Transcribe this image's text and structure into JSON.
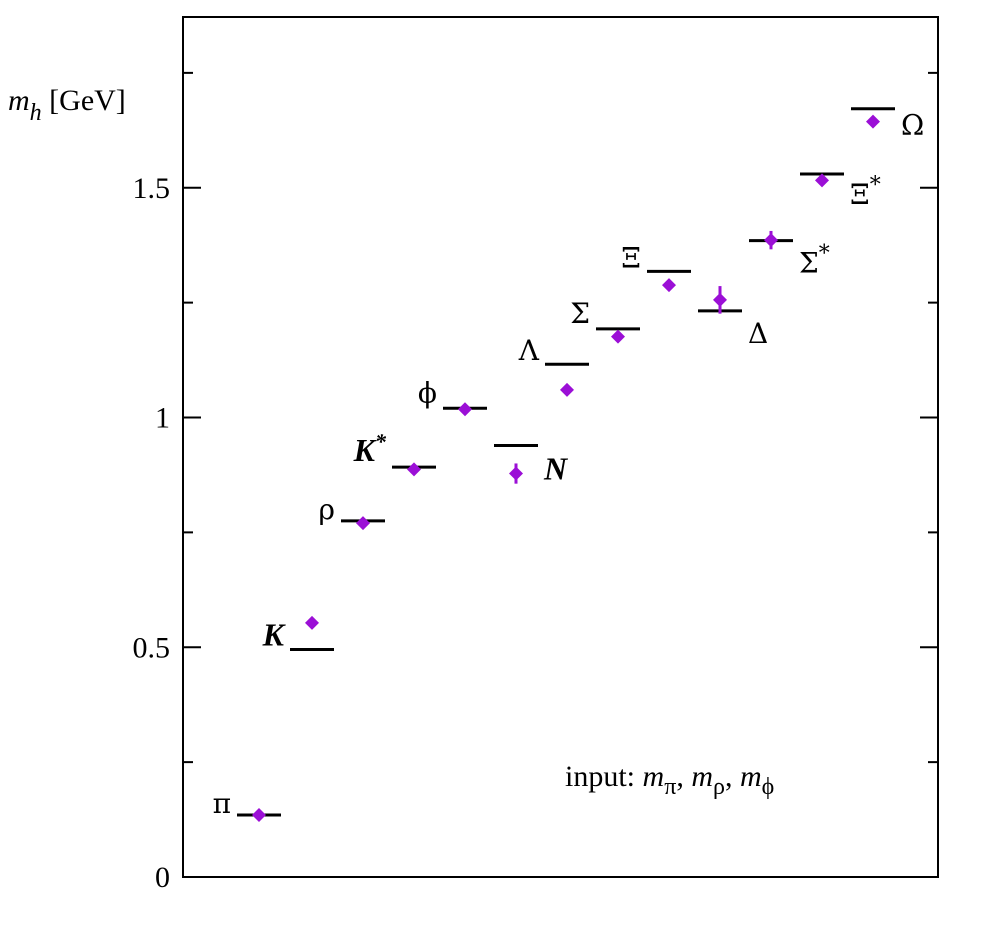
{
  "chart_data": {
    "type": "scatter",
    "title": "",
    "ylabel_main": "m",
    "ylabel_sub": "h",
    "ylabel_unit": " [GeV]",
    "ylim": [
      0,
      1.8
    ],
    "yticks": [
      0,
      0.5,
      1,
      1.5
    ],
    "ytick_labels": [
      "0",
      "0.5",
      "1",
      "1.5"
    ],
    "marker_color": "#9b0fd6",
    "line_color": "#000000",
    "annotation": {
      "prefix": "input:  ",
      "m": "m",
      "sub1": "π",
      "sub2": "ρ",
      "sub3": "ϕ",
      "sep": ", "
    },
    "hadrons": [
      {
        "label": "π",
        "sup": "",
        "style": "normal",
        "experiment": 0.135,
        "lattice": 0.135,
        "error": 0.0
      },
      {
        "label": "K",
        "sup": "",
        "style": "bold-ital",
        "experiment": 0.495,
        "lattice": 0.553,
        "error": 0.0
      },
      {
        "label": "ρ",
        "sup": "",
        "style": "normal",
        "experiment": 0.775,
        "lattice": 0.77,
        "error": 0.0
      },
      {
        "label": "K",
        "sup": "*",
        "style": "bold-ital",
        "experiment": 0.892,
        "lattice": 0.887,
        "error": 0.0
      },
      {
        "label": "ϕ",
        "sup": "",
        "style": "normal",
        "experiment": 1.02,
        "lattice": 1.018,
        "error": 0.0
      },
      {
        "label": "N",
        "sup": "",
        "style": "bold-ital",
        "experiment": 0.939,
        "lattice": 0.878,
        "error": 0.022
      },
      {
        "label": "Λ",
        "sup": "",
        "style": "normal",
        "experiment": 1.116,
        "lattice": 1.06,
        "error": 0.0
      },
      {
        "label": "Σ",
        "sup": "",
        "style": "normal",
        "experiment": 1.193,
        "lattice": 1.176,
        "error": 0.0
      },
      {
        "label": "Ξ",
        "sup": "",
        "style": "normal",
        "experiment": 1.318,
        "lattice": 1.288,
        "error": 0.0
      },
      {
        "label": "Δ",
        "sup": "",
        "style": "normal",
        "experiment": 1.232,
        "lattice": 1.256,
        "error": 0.03
      },
      {
        "label": "Σ",
        "sup": "*",
        "style": "normal",
        "experiment": 1.385,
        "lattice": 1.386,
        "error": 0.02
      },
      {
        "label": "Ξ",
        "sup": "*",
        "style": "normal",
        "experiment": 1.53,
        "lattice": 1.516,
        "error": 0.0
      },
      {
        "label": "Ω",
        "sup": "",
        "style": "normal",
        "experiment": 1.672,
        "lattice": 1.644,
        "error": 0.0
      }
    ]
  }
}
